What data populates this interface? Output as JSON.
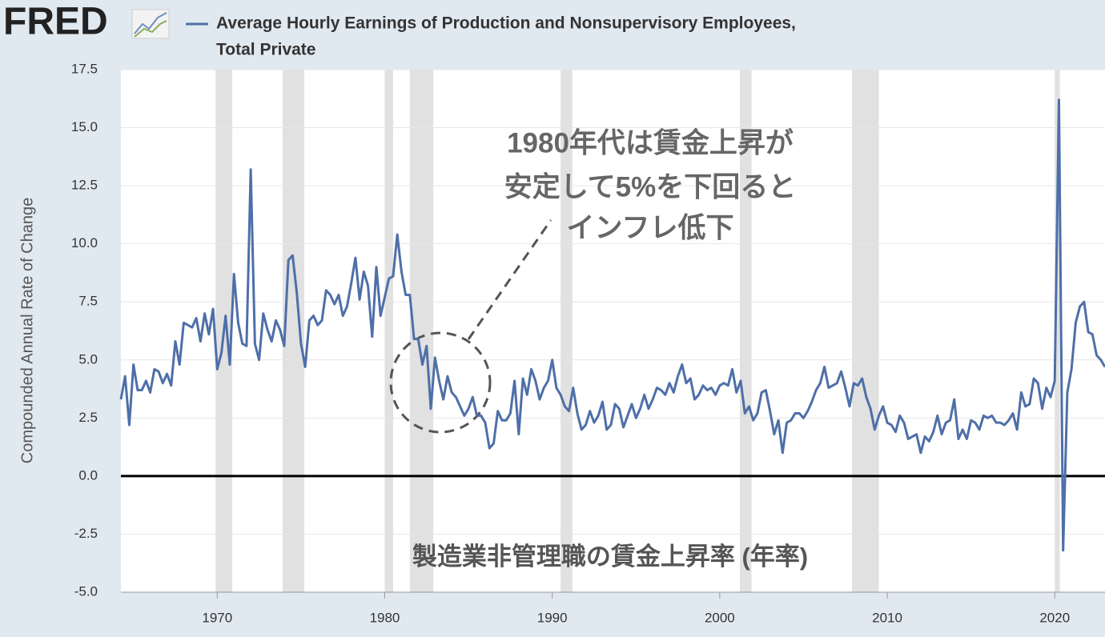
{
  "logo": "FRED",
  "chart_data": {
    "type": "line",
    "series": [
      {
        "name": [
          "Average Hourly Earnings of Production and Nonsupervisory Employees,",
          "Total Private"
        ],
        "color": "#4e6fa8",
        "x": [
          1964.25,
          1964.5,
          1964.75,
          1965,
          1965.25,
          1965.5,
          1965.75,
          1966,
          1966.25,
          1966.5,
          1966.75,
          1967,
          1967.25,
          1967.5,
          1967.75,
          1968,
          1968.25,
          1968.5,
          1968.75,
          1969,
          1969.25,
          1969.5,
          1969.75,
          1970,
          1970.25,
          1970.5,
          1970.75,
          1971,
          1971.25,
          1971.5,
          1971.75,
          1972,
          1972.25,
          1972.5,
          1972.75,
          1973,
          1973.25,
          1973.5,
          1973.75,
          1974,
          1974.25,
          1974.5,
          1974.75,
          1975,
          1975.25,
          1975.5,
          1975.75,
          1976,
          1976.25,
          1976.5,
          1976.75,
          1977,
          1977.25,
          1977.5,
          1977.75,
          1978,
          1978.25,
          1978.5,
          1978.75,
          1979,
          1979.25,
          1979.5,
          1979.75,
          1980,
          1980.25,
          1980.5,
          1980.75,
          1981,
          1981.25,
          1981.5,
          1981.75,
          1982,
          1982.25,
          1982.5,
          1982.75,
          1983,
          1983.25,
          1983.5,
          1983.75,
          1984,
          1984.25,
          1984.5,
          1984.75,
          1985,
          1985.25,
          1985.5,
          1985.75,
          1986,
          1986.25,
          1986.5,
          1986.75,
          1987,
          1987.25,
          1987.5,
          1987.75,
          1988,
          1988.25,
          1988.5,
          1988.75,
          1989,
          1989.25,
          1989.5,
          1989.75,
          1990,
          1990.25,
          1990.5,
          1990.75,
          1991,
          1991.25,
          1991.5,
          1991.75,
          1992,
          1992.25,
          1992.5,
          1992.75,
          1993,
          1993.25,
          1993.5,
          1993.75,
          1994,
          1994.25,
          1994.5,
          1994.75,
          1995,
          1995.25,
          1995.5,
          1995.75,
          1996,
          1996.25,
          1996.5,
          1996.75,
          1997,
          1997.25,
          1997.5,
          1997.75,
          1998,
          1998.25,
          1998.5,
          1998.75,
          1999,
          1999.25,
          1999.5,
          1999.75,
          2000,
          2000.25,
          2000.5,
          2000.75,
          2001,
          2001.25,
          2001.5,
          2001.75,
          2002,
          2002.25,
          2002.5,
          2002.75,
          2003,
          2003.25,
          2003.5,
          2003.75,
          2004,
          2004.25,
          2004.5,
          2004.75,
          2005,
          2005.25,
          2005.5,
          2005.75,
          2006,
          2006.25,
          2006.5,
          2006.75,
          2007,
          2007.25,
          2007.5,
          2007.75,
          2008,
          2008.25,
          2008.5,
          2008.75,
          2009,
          2009.25,
          2009.5,
          2009.75,
          2010,
          2010.25,
          2010.5,
          2010.75,
          2011,
          2011.25,
          2011.5,
          2011.75,
          2012,
          2012.25,
          2012.5,
          2012.75,
          2013,
          2013.25,
          2013.5,
          2013.75,
          2014,
          2014.25,
          2014.5,
          2014.75,
          2015,
          2015.25,
          2015.5,
          2015.75,
          2016,
          2016.25,
          2016.5,
          2016.75,
          2017,
          2017.25,
          2017.5,
          2017.75,
          2018,
          2018.25,
          2018.5,
          2018.75,
          2019,
          2019.25,
          2019.5,
          2019.75,
          2020,
          2020.25,
          2020.5,
          2020.75,
          2021,
          2021.25,
          2021.5,
          2021.75,
          2022,
          2022.25,
          2022.5,
          2022.75,
          2023
        ],
        "values": [
          3.3,
          4.3,
          2.2,
          4.8,
          3.7,
          3.7,
          4.1,
          3.6,
          4.6,
          4.5,
          4.0,
          4.4,
          3.9,
          5.8,
          4.8,
          6.6,
          6.5,
          6.4,
          6.8,
          5.8,
          7.0,
          6.1,
          7.2,
          4.6,
          5.3,
          6.9,
          4.8,
          8.7,
          6.6,
          5.7,
          5.6,
          13.2,
          5.7,
          5.0,
          7.0,
          6.3,
          5.8,
          6.7,
          6.3,
          5.6,
          9.3,
          9.5,
          7.9,
          5.7,
          4.7,
          6.7,
          6.9,
          6.5,
          6.7,
          8.0,
          7.8,
          7.4,
          7.8,
          6.9,
          7.3,
          8.3,
          9.4,
          7.6,
          8.8,
          8.2,
          6.0,
          9.0,
          6.9,
          7.7,
          8.5,
          8.6,
          10.4,
          8.8,
          7.8,
          7.8,
          5.9,
          5.9,
          4.8,
          5.6,
          2.9,
          5.1,
          4.1,
          3.3,
          4.3,
          3.6,
          3.4,
          3.0,
          2.6,
          2.9,
          3.4,
          2.6,
          2.6,
          2.3,
          1.2,
          1.4,
          2.8,
          2.4,
          2.4,
          2.7,
          4.1,
          1.8,
          4.2,
          3.5,
          4.6,
          4.1,
          3.3,
          3.8,
          4.1,
          5.0,
          3.8,
          3.5,
          3.0,
          2.8,
          3.8,
          2.7,
          2.0,
          2.2,
          2.8,
          2.3,
          2.6,
          3.2,
          2.0,
          2.2,
          3.1,
          2.9,
          2.1,
          2.6,
          3.1,
          2.5,
          2.9,
          3.5,
          2.9,
          3.3,
          3.8,
          3.7,
          3.5,
          4.0,
          3.6,
          4.3,
          4.8,
          4.0,
          4.2,
          3.3,
          3.5,
          3.9,
          3.7,
          3.8,
          3.5,
          3.9,
          4.0,
          3.9,
          4.6,
          3.6,
          4.1,
          2.7,
          3.0,
          2.4,
          2.7,
          3.6,
          3.7,
          2.8,
          1.8,
          2.4,
          1.0,
          2.3,
          2.4,
          2.7,
          2.7,
          2.5,
          2.8,
          3.2,
          3.7,
          4.0,
          4.7,
          3.8,
          3.9,
          4.0,
          4.5,
          3.8,
          3.0,
          4.0,
          3.9,
          4.2,
          3.4,
          2.9,
          2.0,
          2.6,
          3.0,
          2.3,
          2.2,
          1.9,
          2.6,
          2.3,
          1.6,
          1.7,
          1.8,
          1.0,
          1.7,
          1.5,
          1.9,
          2.6,
          1.8,
          2.3,
          2.4,
          3.3,
          1.6,
          2.0,
          1.6,
          2.4,
          2.3,
          2.0,
          2.6,
          2.5,
          2.6,
          2.3,
          2.3,
          2.2,
          2.4,
          2.7,
          2.0,
          3.6,
          3.0,
          3.1,
          4.2,
          4.0,
          2.9,
          3.8,
          3.4,
          4.1,
          16.2,
          -3.2,
          3.6,
          4.6,
          6.6,
          7.3,
          7.5,
          6.2,
          6.1,
          5.2,
          5.0,
          4.7
        ]
      }
    ],
    "recessions": [
      [
        1969.9,
        1970.9
      ],
      [
        1973.9,
        1975.2
      ],
      [
        1980.0,
        1980.5
      ],
      [
        1981.5,
        1982.9
      ],
      [
        1990.5,
        1991.2
      ],
      [
        2001.2,
        2001.9
      ],
      [
        2007.9,
        2009.5
      ],
      [
        2020.0,
        2020.3
      ]
    ],
    "ylabel": "Compounded Annual Rate of Change",
    "xlim": [
      1964.25,
      2023.0
    ],
    "xticks": [
      1970,
      1980,
      1990,
      2000,
      2010,
      2020
    ],
    "ylim": [
      -5,
      17.5
    ],
    "yticks": [
      {
        "value": -5,
        "label": "-5.0"
      },
      -2.5,
      {
        "value": 0,
        "label": "0.0"
      },
      2.5,
      {
        "value": 5,
        "label": "5.0"
      },
      7.5,
      {
        "value": 10,
        "label": "10.0"
      },
      12.5,
      {
        "value": 15,
        "label": "15.0"
      },
      17.5
    ],
    "annotations": [
      "1980年代は賃金上昇が",
      "安定して5%を下回ると",
      "インフレ低下",
      "製造業非管理職の賃金上昇率 (年率)"
    ]
  }
}
